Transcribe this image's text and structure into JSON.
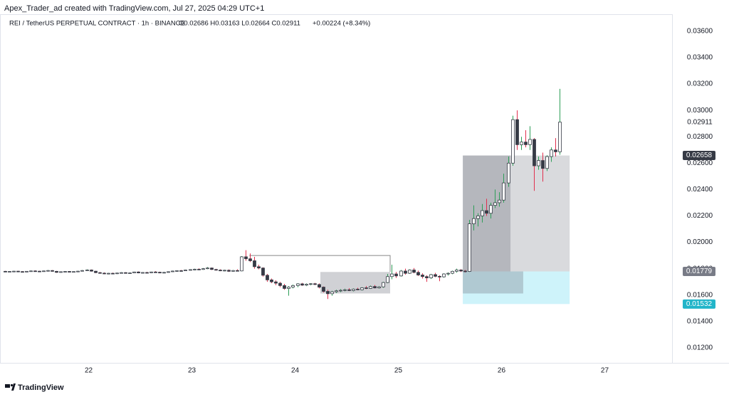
{
  "chart_data": {
    "type": "candlestick",
    "title": "Apex_Trader_ad created with TradingView.com, Jul 27, 2025 04:29 UTC+1",
    "symbol": "REI / TetherUS PERPETUAL CONTRACT · 1h · BINANCE",
    "legend_values": "O0.02686 H0.03163 L0.02664 C0.02911",
    "change": "+0.00224 (+8.34%)",
    "footer": "TradingView",
    "xlim": [
      21.141,
      27.659
    ],
    "ylim": [
      0.01086,
      0.03729
    ],
    "xticks": [
      22,
      23,
      24,
      25,
      26,
      27
    ],
    "yticks": [
      {
        "value": 0.012,
        "label": "0.01200"
      },
      {
        "value": 0.014,
        "label": "0.01400"
      },
      {
        "value": 0.016,
        "label": "0.01600"
      },
      {
        "value": 0.018,
        "label": "0.01800"
      },
      {
        "value": 0.02,
        "label": "0.02000"
      },
      {
        "value": 0.022,
        "label": "0.02200"
      },
      {
        "value": 0.024,
        "label": "0.02400"
      },
      {
        "value": 0.026,
        "label": "0.02600"
      },
      {
        "value": 0.028,
        "label": "0.02800"
      },
      {
        "value": 0.03,
        "label": "0.03000"
      },
      {
        "value": 0.032,
        "label": "0.03200"
      },
      {
        "value": 0.034,
        "label": "0.03400"
      },
      {
        "value": 0.036,
        "label": "0.03600"
      }
    ],
    "up_color": "#ffffff",
    "down_color": "#363a45",
    "border_color": "#363a45",
    "up_wick": "#2e9e58",
    "down_wick": "#e0304e",
    "x": [
      21.1875,
      21.2292,
      21.2708,
      21.3125,
      21.3542,
      21.3958,
      21.4375,
      21.4792,
      21.5208,
      21.5625,
      21.6042,
      21.6458,
      21.6875,
      21.7292,
      21.7708,
      21.8125,
      21.8542,
      21.8958,
      21.9375,
      21.9792,
      22.0208,
      22.0625,
      22.1042,
      22.1458,
      22.1875,
      22.2292,
      22.2708,
      22.3125,
      22.3542,
      22.3958,
      22.4375,
      22.4792,
      22.5208,
      22.5625,
      22.6042,
      22.6458,
      22.6875,
      22.7292,
      22.7708,
      22.8125,
      22.8542,
      22.8958,
      22.9375,
      22.9792,
      23.0208,
      23.0625,
      23.1042,
      23.1458,
      23.1875,
      23.2292,
      23.2708,
      23.3125,
      23.3542,
      23.3958,
      23.4375,
      23.4792,
      23.5208,
      23.5625,
      23.6042,
      23.6458,
      23.6875,
      23.7292,
      23.7708,
      23.8125,
      23.8542,
      23.8958,
      23.9375,
      23.9792,
      24.0208,
      24.0625,
      24.1042,
      24.1458,
      24.1875,
      24.2292,
      24.2708,
      24.3125,
      24.3542,
      24.3958,
      24.4375,
      24.4792,
      24.5208,
      24.5625,
      24.6042,
      24.6458,
      24.6875,
      24.7292,
      24.7708,
      24.8125,
      24.8542,
      24.8958,
      24.9375,
      24.9792,
      25.0208,
      25.0625,
      25.1042,
      25.1458,
      25.1875,
      25.2292,
      25.2708,
      25.3125,
      25.3542,
      25.3958,
      25.4375,
      25.4792,
      25.5208,
      25.5625,
      25.6042,
      25.6458,
      25.6875,
      25.7292,
      25.7708,
      25.8125,
      25.8542,
      25.8958,
      25.9375,
      25.9792,
      26.0208,
      26.0625,
      26.1042,
      26.1458,
      26.1875,
      26.2292,
      26.2708,
      26.3125,
      26.3542,
      26.3958,
      26.4375,
      26.4792,
      26.5208,
      26.5625
    ],
    "open": [
      0.0178,
      0.01778,
      0.01779,
      0.01781,
      0.01778,
      0.01776,
      0.0178,
      0.01783,
      0.01781,
      0.01779,
      0.01783,
      0.01786,
      0.0178,
      0.01772,
      0.01777,
      0.01779,
      0.01775,
      0.01778,
      0.01781,
      0.01786,
      0.0179,
      0.01781,
      0.0177,
      0.01766,
      0.01761,
      0.01765,
      0.01763,
      0.01767,
      0.0177,
      0.01765,
      0.01768,
      0.01775,
      0.01768,
      0.01771,
      0.01769,
      0.01775,
      0.01773,
      0.01768,
      0.01772,
      0.01777,
      0.01782,
      0.01785,
      0.01784,
      0.0179,
      0.01793,
      0.01796,
      0.01794,
      0.018,
      0.01805,
      0.01794,
      0.01789,
      0.01785,
      0.01788,
      0.0178,
      0.01786,
      0.01783,
      0.0189,
      0.01875,
      0.0186,
      0.01815,
      0.01805,
      0.0175,
      0.01715,
      0.017,
      0.0169,
      0.01672,
      0.0165,
      0.0166,
      0.01672,
      0.01685,
      0.01675,
      0.01682,
      0.01686,
      0.0168,
      0.0166,
      0.01628,
      0.0161,
      0.01625,
      0.01632,
      0.01636,
      0.0164,
      0.01634,
      0.01645,
      0.0164,
      0.01655,
      0.0165,
      0.01665,
      0.01654,
      0.01662,
      0.01695,
      0.0174,
      0.0176,
      0.01745,
      0.01782,
      0.01765,
      0.0179,
      0.01772,
      0.01752,
      0.0174,
      0.0173,
      0.01755,
      0.01742,
      0.01738,
      0.0176,
      0.01765,
      0.0178,
      0.0179,
      0.01782,
      0.01779,
      0.0214,
      0.0218,
      0.022,
      0.0224,
      0.0222,
      0.0228,
      0.023,
      0.0232,
      0.0245,
      0.026,
      0.0293,
      0.0274,
      0.0276,
      0.0274,
      0.0278,
      0.0258,
      0.0262,
      0.0256,
      0.0265,
      0.027,
      0.02686
    ],
    "high": [
      0.01783,
      0.01782,
      0.01784,
      0.01784,
      0.01781,
      0.01782,
      0.01786,
      0.01787,
      0.01784,
      0.01785,
      0.0179,
      0.01789,
      0.01783,
      0.01779,
      0.01781,
      0.01782,
      0.0178,
      0.01784,
      0.0179,
      0.01795,
      0.01794,
      0.01784,
      0.01775,
      0.01772,
      0.01768,
      0.0177,
      0.01769,
      0.01774,
      0.01773,
      0.01771,
      0.01778,
      0.01779,
      0.01774,
      0.01776,
      0.01778,
      0.01781,
      0.01777,
      0.01775,
      0.0178,
      0.01785,
      0.01788,
      0.0179,
      0.01793,
      0.01796,
      0.018,
      0.01802,
      0.01805,
      0.01812,
      0.01809,
      0.01799,
      0.01795,
      0.01792,
      0.01794,
      0.0179,
      0.01795,
      0.01895,
      0.0194,
      0.01915,
      0.0189,
      0.0183,
      0.0181,
      0.0176,
      0.01725,
      0.01712,
      0.017,
      0.01685,
      0.01668,
      0.0168,
      0.0169,
      0.01692,
      0.01688,
      0.0169,
      0.01692,
      0.01688,
      0.01665,
      0.0164,
      0.01632,
      0.0164,
      0.01645,
      0.01648,
      0.01652,
      0.0165,
      0.01655,
      0.0166,
      0.01668,
      0.01672,
      0.01676,
      0.01668,
      0.017,
      0.0176,
      0.0183,
      0.01775,
      0.0179,
      0.018,
      0.01795,
      0.01805,
      0.01785,
      0.01765,
      0.0175,
      0.0176,
      0.01768,
      0.0175,
      0.01765,
      0.01772,
      0.01785,
      0.018,
      0.01796,
      0.0179,
      0.0217,
      0.0228,
      0.0222,
      0.0229,
      0.0233,
      0.023,
      0.024,
      0.0238,
      0.0252,
      0.0265,
      0.0296,
      0.03,
      0.028,
      0.0285,
      0.0288,
      0.0279,
      0.0265,
      0.0268,
      0.0266,
      0.0272,
      0.0279,
      0.03163
    ],
    "low": [
      0.01776,
      0.01775,
      0.01777,
      0.01777,
      0.01774,
      0.01775,
      0.01778,
      0.01779,
      0.01776,
      0.01777,
      0.01781,
      0.01778,
      0.01768,
      0.0177,
      0.01773,
      0.01772,
      0.01771,
      0.01776,
      0.01779,
      0.01783,
      0.01778,
      0.01766,
      0.01762,
      0.01758,
      0.01757,
      0.0176,
      0.01759,
      0.01763,
      0.01762,
      0.01761,
      0.01766,
      0.01765,
      0.01763,
      0.01766,
      0.01767,
      0.0177,
      0.01765,
      0.01764,
      0.0177,
      0.01775,
      0.01778,
      0.0178,
      0.01782,
      0.01786,
      0.01788,
      0.0179,
      0.01791,
      0.01796,
      0.0179,
      0.01785,
      0.01781,
      0.0178,
      0.01776,
      0.01778,
      0.0178,
      0.0178,
      0.0186,
      0.0185,
      0.018,
      0.01795,
      0.0174,
      0.017,
      0.0169,
      0.01675,
      0.0166,
      0.0164,
      0.01595,
      0.0165,
      0.0166,
      0.0167,
      0.01668,
      0.01674,
      0.01676,
      0.0165,
      0.0162,
      0.0157,
      0.01595,
      0.01615,
      0.01622,
      0.01628,
      0.0163,
      0.01628,
      0.01636,
      0.01635,
      0.01645,
      0.01646,
      0.0165,
      0.01648,
      0.01655,
      0.0169,
      0.0172,
      0.0173,
      0.0174,
      0.01755,
      0.0176,
      0.01765,
      0.01745,
      0.01725,
      0.017,
      0.01722,
      0.01735,
      0.01705,
      0.01732,
      0.01748,
      0.01758,
      0.0177,
      0.01775,
      0.01772,
      0.01775,
      0.0209,
      0.0212,
      0.0215,
      0.022,
      0.0218,
      0.0226,
      0.0227,
      0.023,
      0.0242,
      0.0258,
      0.027,
      0.027,
      0.0272,
      0.027,
      0.0239,
      0.0255,
      0.0246,
      0.0254,
      0.0261,
      0.0265,
      0.02664
    ],
    "close": [
      0.01778,
      0.01779,
      0.01781,
      0.01778,
      0.01776,
      0.0178,
      0.01783,
      0.01781,
      0.01779,
      0.01783,
      0.01786,
      0.0178,
      0.01772,
      0.01777,
      0.01779,
      0.01775,
      0.01778,
      0.01781,
      0.01786,
      0.0179,
      0.01781,
      0.0177,
      0.01766,
      0.01761,
      0.01765,
      0.01763,
      0.01767,
      0.0177,
      0.01765,
      0.01768,
      0.01775,
      0.01768,
      0.01771,
      0.01769,
      0.01775,
      0.01773,
      0.01768,
      0.01772,
      0.01777,
      0.01782,
      0.01785,
      0.01784,
      0.0179,
      0.01793,
      0.01796,
      0.01794,
      0.018,
      0.01805,
      0.01794,
      0.01789,
      0.01785,
      0.01788,
      0.0178,
      0.01786,
      0.01783,
      0.0189,
      0.01875,
      0.0186,
      0.01815,
      0.01805,
      0.0175,
      0.01715,
      0.017,
      0.0169,
      0.01672,
      0.0165,
      0.0166,
      0.01672,
      0.01685,
      0.01675,
      0.01682,
      0.01686,
      0.0168,
      0.0166,
      0.01628,
      0.0161,
      0.01625,
      0.01632,
      0.01636,
      0.0164,
      0.01634,
      0.01645,
      0.0164,
      0.01655,
      0.0165,
      0.01665,
      0.01654,
      0.01662,
      0.01695,
      0.0174,
      0.0176,
      0.01745,
      0.01782,
      0.01765,
      0.0179,
      0.01772,
      0.01752,
      0.0174,
      0.0173,
      0.01755,
      0.01742,
      0.01738,
      0.0176,
      0.01765,
      0.0178,
      0.0179,
      0.01782,
      0.01779,
      0.0214,
      0.0218,
      0.022,
      0.0224,
      0.0222,
      0.0228,
      0.023,
      0.0232,
      0.0245,
      0.026,
      0.0293,
      0.0274,
      0.0276,
      0.0274,
      0.0278,
      0.0258,
      0.0262,
      0.0256,
      0.0265,
      0.027,
      0.02686,
      0.02911
    ],
    "zones": [
      {
        "xlim": [
          24.245,
          24.921
        ],
        "ylim": [
          0.01612,
          0.01775
        ],
        "color": "rgba(120,123,134,0.35)"
      },
      {
        "xlim": [
          25.625,
          26.087
        ],
        "ylim": [
          0.01779,
          0.02658
        ],
        "color": "rgba(120,123,134,0.55)"
      },
      {
        "xlim": [
          26.087,
          26.66
        ],
        "ylim": [
          0.01779,
          0.02658
        ],
        "color": "rgba(120,123,134,0.28)"
      },
      {
        "xlim": [
          25.625,
          26.66
        ],
        "ylim": [
          0.01532,
          0.01779
        ],
        "color": "rgba(34,200,230,0.22)"
      },
      {
        "xlim": [
          25.625,
          26.21
        ],
        "ylim": [
          0.01612,
          0.01779
        ],
        "color": "rgba(120,123,134,0.35)"
      }
    ],
    "lines": [
      {
        "x": [
          23.557,
          24.921,
          24.921
        ],
        "y": [
          0.019,
          0.019,
          0.01775
        ],
        "color": "#888888"
      }
    ],
    "price_labels": [
      {
        "value": 0.02911,
        "color": null
      },
      {
        "value": 0.02658,
        "color": "#363a45"
      },
      {
        "value": 0.01779,
        "color": "#787b86"
      },
      {
        "value": 0.01532,
        "color": "#22b5c9"
      }
    ]
  }
}
